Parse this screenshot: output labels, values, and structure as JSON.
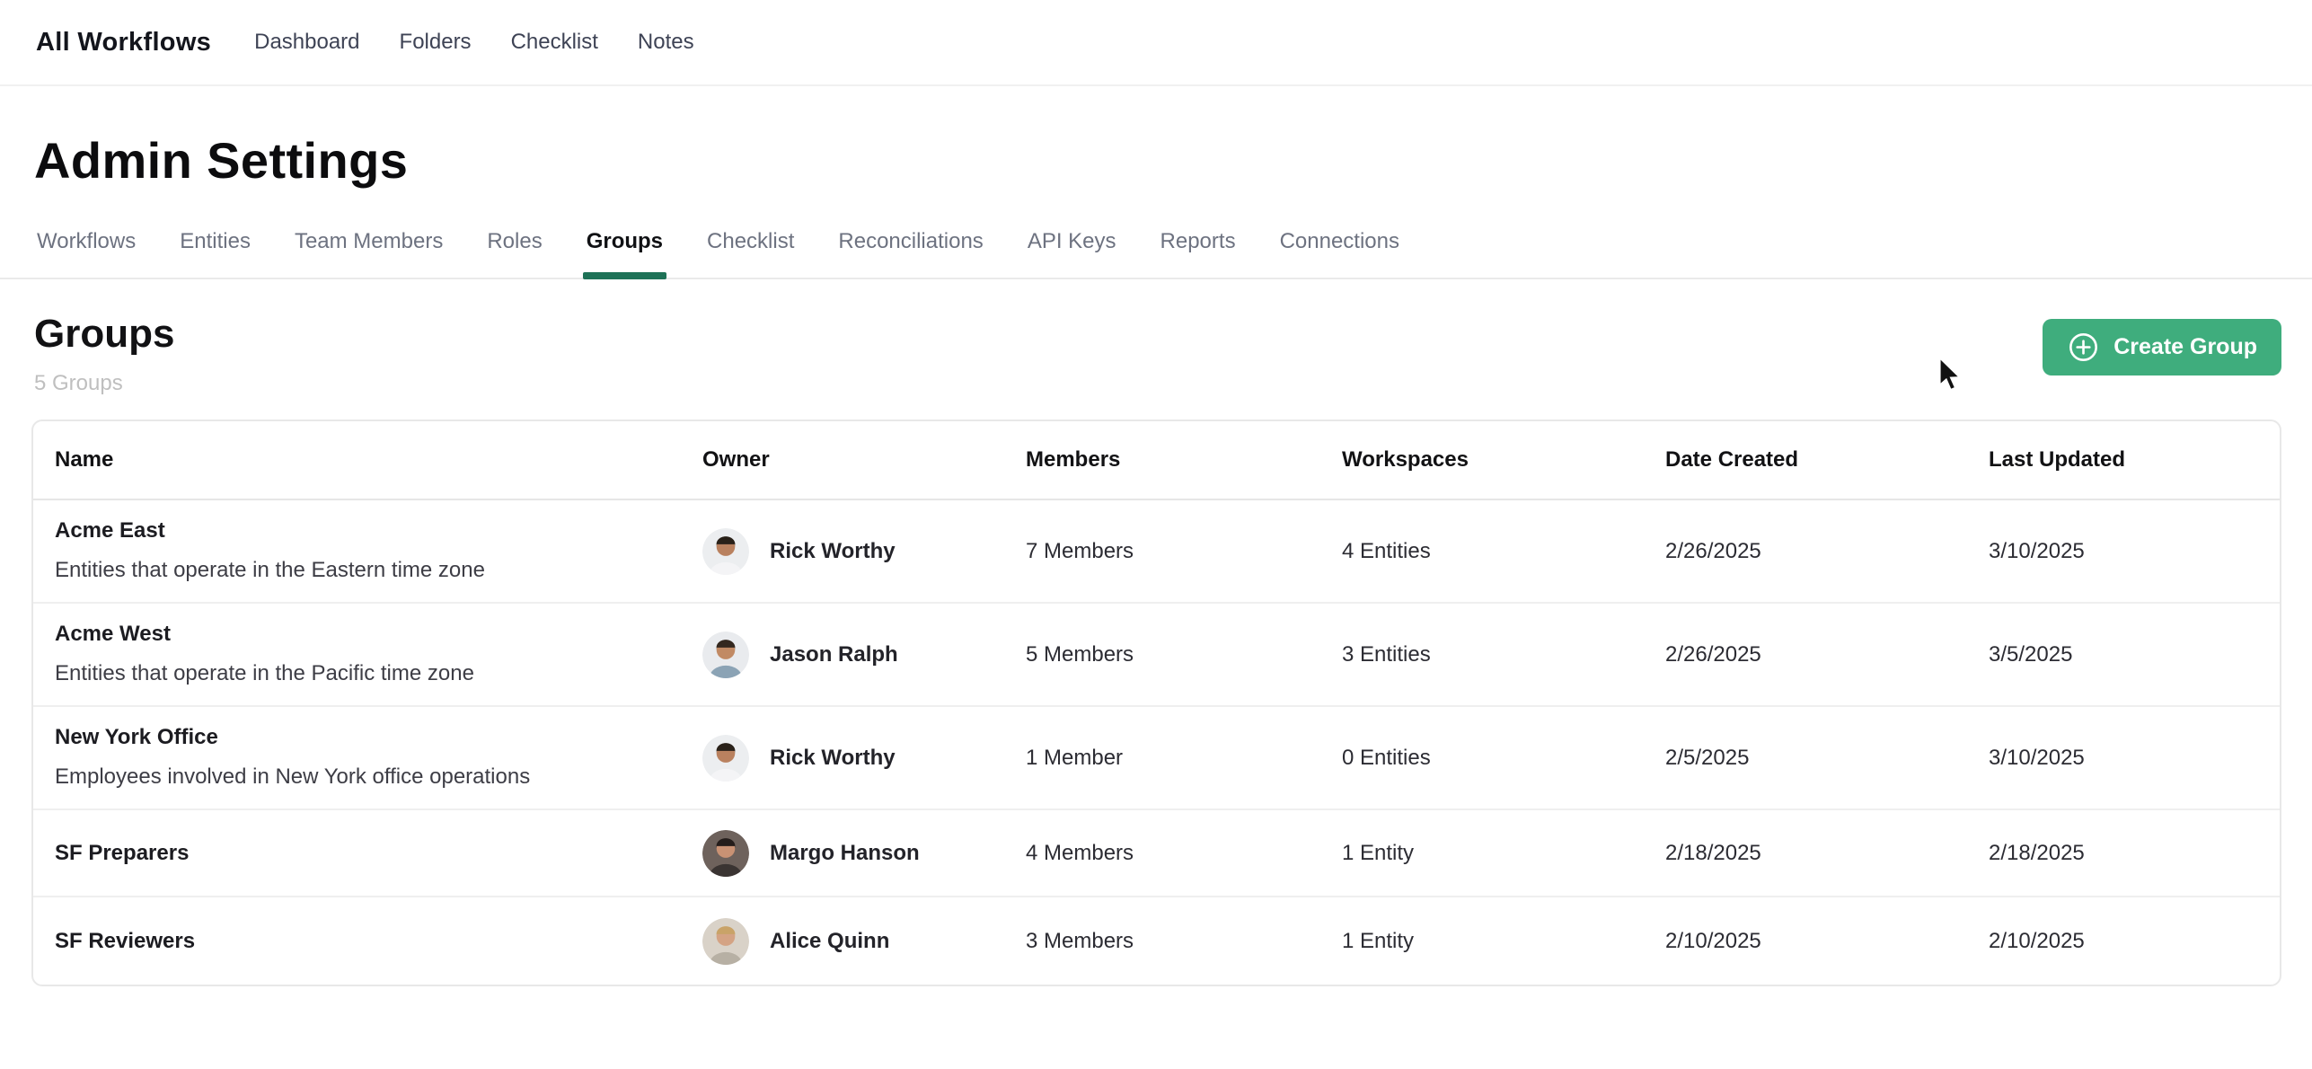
{
  "topnav": {
    "brand": "All Workflows",
    "items": [
      {
        "label": "Dashboard"
      },
      {
        "label": "Folders"
      },
      {
        "label": "Checklist"
      },
      {
        "label": "Notes"
      }
    ]
  },
  "page": {
    "title": "Admin Settings"
  },
  "tabs": {
    "items": [
      "Workflows",
      "Entities",
      "Team Members",
      "Roles",
      "Groups",
      "Checklist",
      "Reconciliations",
      "API Keys",
      "Reports",
      "Connections"
    ],
    "active": "Groups"
  },
  "section": {
    "title": "Groups",
    "count_label": "5 Groups",
    "create_button": "Create Group"
  },
  "table": {
    "columns": [
      "Name",
      "Owner",
      "Members",
      "Workspaces",
      "Date Created",
      "Last Updated"
    ],
    "rows": [
      {
        "name": "Acme East",
        "description": "Entities that operate in the Eastern time zone",
        "owner": "Rick Worthy",
        "members": "7 Members",
        "workspaces": "4 Entities",
        "date_created": "2/26/2025",
        "last_updated": "3/10/2025",
        "avatar": {
          "bg": "#eceef0",
          "skin": "#b9815f",
          "hair": "#292119",
          "shirt": "#f4f4f6"
        }
      },
      {
        "name": "Acme West",
        "description": "Entities that operate in the Pacific time zone",
        "owner": "Jason Ralph",
        "members": "5 Members",
        "workspaces": "3 Entities",
        "date_created": "2/26/2025",
        "last_updated": "3/5/2025",
        "avatar": {
          "bg": "#e9ebee",
          "skin": "#c18a64",
          "hair": "#33281f",
          "shirt": "#8ba3b5"
        }
      },
      {
        "name": "New York Office",
        "description": "Employees involved in New York office operations",
        "owner": "Rick Worthy",
        "members": "1 Member",
        "workspaces": "0 Entities",
        "date_created": "2/5/2025",
        "last_updated": "3/10/2025",
        "avatar": {
          "bg": "#eceef0",
          "skin": "#b9815f",
          "hair": "#292119",
          "shirt": "#f4f4f6"
        }
      },
      {
        "name": "SF Preparers",
        "description": "",
        "owner": "Margo Hanson",
        "members": "4 Members",
        "workspaces": "1 Entity",
        "date_created": "2/18/2025",
        "last_updated": "2/18/2025",
        "avatar": {
          "bg": "#6e625c",
          "skin": "#c99274",
          "hair": "#241d1b",
          "shirt": "#3a3432"
        }
      },
      {
        "name": "SF Reviewers",
        "description": "",
        "owner": "Alice Quinn",
        "members": "3 Members",
        "workspaces": "1 Entity",
        "date_created": "2/10/2025",
        "last_updated": "2/10/2025",
        "avatar": {
          "bg": "#d9d2c8",
          "skin": "#d4a384",
          "hair": "#c9a368",
          "shirt": "#b7b0a4"
        }
      }
    ]
  },
  "colors": {
    "accent_green": "#3FAD7D",
    "tab_underline": "#1E7257"
  }
}
